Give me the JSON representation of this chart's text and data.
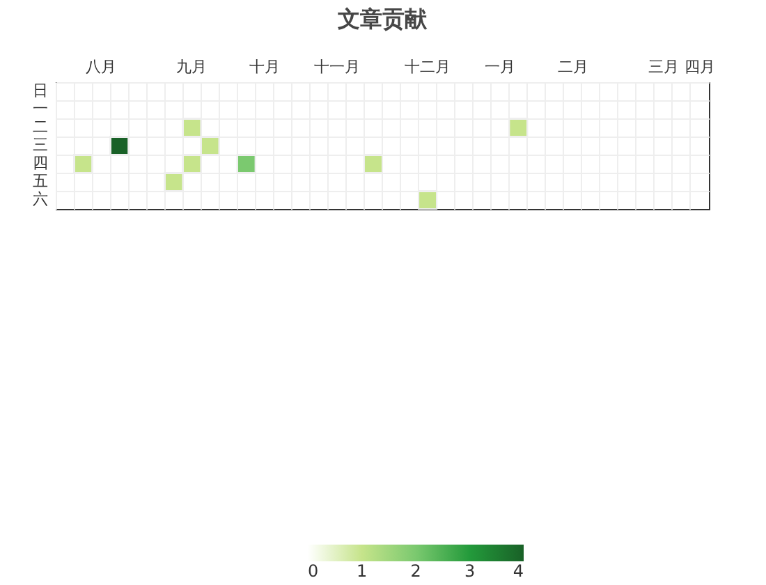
{
  "chart_data": {
    "type": "heatmap",
    "title": "文章贡献",
    "categories": [
      null,
      null,
      "八月",
      null,
      null,
      null,
      null,
      "九月",
      null,
      null,
      null,
      "十月",
      null,
      null,
      null,
      "十一月",
      null,
      null,
      null,
      null,
      "十二月",
      null,
      null,
      null,
      "一月",
      null,
      null,
      null,
      "二月",
      null,
      null,
      null,
      null,
      "三月",
      null,
      "四月"
    ],
    "y_categories": [
      "日",
      "一",
      "二",
      "三",
      "四",
      "五",
      "六"
    ],
    "cells": [
      [
        null,
        null,
        null,
        null,
        null,
        null,
        null,
        null,
        null,
        null,
        null,
        null,
        null,
        null,
        null,
        null,
        null,
        null,
        null,
        null,
        null,
        null,
        null,
        null,
        null,
        null,
        null,
        null,
        null,
        null,
        null,
        null,
        null,
        null,
        null,
        null
      ],
      [
        null,
        null,
        null,
        null,
        null,
        null,
        null,
        null,
        null,
        null,
        null,
        null,
        null,
        null,
        null,
        null,
        null,
        null,
        null,
        null,
        null,
        null,
        null,
        null,
        null,
        null,
        null,
        null,
        null,
        null,
        null,
        null,
        null,
        null,
        null,
        null
      ],
      [
        null,
        null,
        null,
        null,
        null,
        null,
        null,
        1,
        null,
        null,
        null,
        null,
        null,
        null,
        null,
        null,
        null,
        null,
        null,
        null,
        null,
        null,
        null,
        null,
        null,
        1,
        null,
        null,
        null,
        null,
        null,
        null,
        null,
        null,
        null,
        null
      ],
      [
        null,
        null,
        null,
        4,
        null,
        null,
        null,
        null,
        1,
        null,
        null,
        null,
        null,
        null,
        null,
        null,
        null,
        null,
        null,
        null,
        null,
        null,
        null,
        null,
        null,
        null,
        null,
        null,
        null,
        null,
        null,
        null,
        null,
        null,
        null,
        null
      ],
      [
        null,
        1,
        null,
        null,
        null,
        null,
        null,
        1,
        null,
        null,
        2,
        null,
        null,
        null,
        null,
        null,
        null,
        1,
        null,
        null,
        null,
        null,
        null,
        null,
        null,
        null,
        null,
        null,
        null,
        null,
        null,
        null,
        null,
        null,
        null,
        null
      ],
      [
        null,
        null,
        null,
        null,
        null,
        null,
        1,
        null,
        null,
        null,
        null,
        null,
        null,
        null,
        null,
        null,
        null,
        null,
        null,
        null,
        null,
        null,
        null,
        null,
        null,
        null,
        null,
        null,
        null,
        null,
        null,
        null,
        null,
        null,
        null,
        null
      ],
      [
        null,
        null,
        null,
        null,
        null,
        null,
        null,
        null,
        null,
        null,
        null,
        null,
        null,
        null,
        null,
        null,
        null,
        null,
        null,
        null,
        1,
        null,
        null,
        null,
        null,
        null,
        null,
        null,
        null,
        null,
        null,
        null,
        null,
        null,
        null,
        null
      ]
    ],
    "clim": [
      0,
      4
    ],
    "cticks": [
      0,
      1,
      2,
      3,
      4
    ],
    "colors": [
      "#ffffff",
      "#c6e48b",
      "#7bc96f",
      "#239a3b",
      "#196127"
    ],
    "grid": true
  }
}
